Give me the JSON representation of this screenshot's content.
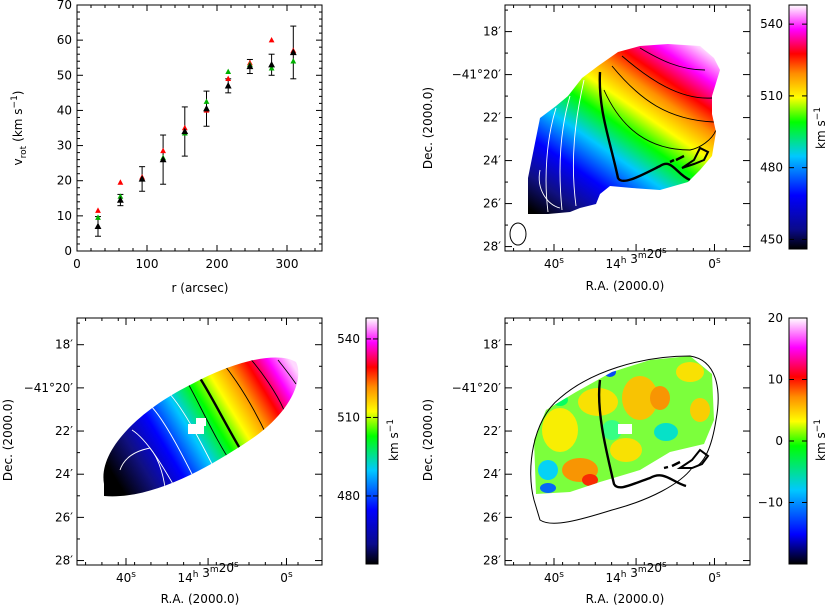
{
  "chart_data": [
    {
      "type": "scatter",
      "xlabel": "r (arcsec)",
      "ylabel": "v_rot (km s^-1)",
      "ylabel_parts": {
        "base": "v",
        "sub": "rot",
        "units": "(km s",
        "exp": "−1",
        "close": ")"
      },
      "xlim": [
        0,
        350
      ],
      "ylim": [
        0,
        70
      ],
      "xticks": [
        "0",
        "100",
        "200",
        "300"
      ],
      "yticks": [
        "0",
        "10",
        "20",
        "30",
        "40",
        "50",
        "60",
        "70"
      ],
      "grid": false,
      "series": [
        {
          "marker": "triangle",
          "color": "#000000",
          "x": [
            30,
            62,
            93,
            123,
            154,
            185,
            216,
            247,
            278,
            309
          ],
          "y": [
            7,
            14.5,
            20.5,
            26,
            34,
            40.5,
            47,
            52.5,
            53,
            56.5
          ],
          "yerr": [
            2.8,
            1.6,
            3.5,
            7,
            7,
            5,
            2,
            2,
            3,
            7.5
          ]
        },
        {
          "marker": "triangle",
          "color": "#ff0000",
          "x": [
            30,
            62,
            93,
            123,
            154,
            185,
            216,
            247,
            278,
            309
          ],
          "y": [
            11.5,
            19.5,
            21,
            28.5,
            35,
            40,
            49,
            53.5,
            60,
            57
          ]
        },
        {
          "marker": "triangle",
          "color": "#00b000",
          "x": [
            30,
            62,
            93,
            123,
            154,
            185,
            216,
            247,
            278,
            309
          ],
          "y": [
            9.5,
            15.5,
            20.5,
            26.5,
            33.5,
            42.5,
            51,
            53,
            52,
            54
          ]
        }
      ]
    },
    {
      "type": "heatmap",
      "panel": "observed-velocity-field",
      "xlabel": "R.A. (2000.0)",
      "ylabel": "Dec. (2000.0)",
      "colorbar_label": "km s^-1",
      "colorbar_range": [
        446,
        548
      ],
      "colorbar_ticks": [
        "450",
        "480",
        "510",
        "540"
      ],
      "colorbar_tick_values": [
        450,
        480,
        510,
        540
      ]
    },
    {
      "type": "heatmap",
      "panel": "model-velocity-field",
      "xlabel": "R.A. (2000.0)",
      "ylabel": "Dec. (2000.0)",
      "colorbar_label": "km s^-1",
      "colorbar_range": [
        454,
        548
      ],
      "colorbar_ticks": [
        "480",
        "510",
        "540"
      ],
      "colorbar_tick_values": [
        480,
        510,
        540
      ]
    },
    {
      "type": "heatmap",
      "panel": "residual-velocity-field",
      "xlabel": "R.A. (2000.0)",
      "ylabel": "Dec. (2000.0)",
      "colorbar_label": "km s^-1",
      "colorbar_range": [
        -20,
        20
      ],
      "colorbar_ticks": [
        "−10",
        "0",
        "10",
        "20"
      ],
      "colorbar_tick_values": [
        -10,
        0,
        10,
        20
      ]
    }
  ],
  "map_axes": {
    "dec_ticks": [
      "18′",
      "−41°20′",
      "22′",
      "24′",
      "26′",
      "28′"
    ],
    "ra_ticks": [
      {
        "main": "40",
        "sup": "s"
      },
      {
        "main": "14",
        "sup": "h",
        "main2": " 3",
        "sup2": "m",
        "main3": "20",
        "sup3": "s"
      },
      {
        "main": "0",
        "sup": "s"
      }
    ]
  },
  "colors": {
    "velocity_colormap": [
      "#000000",
      "#0a0a8a",
      "#0000ff",
      "#00c8ff",
      "#00ff00",
      "#ffff00",
      "#ff8c00",
      "#ff0000",
      "#ff00ff",
      "#ffffff"
    ],
    "residual_colormap": [
      "#000000",
      "#0000ff",
      "#00c8ff",
      "#00ff00",
      "#ffff00",
      "#ff8c00",
      "#ff0000",
      "#ff00ff",
      "#ffffff"
    ]
  }
}
